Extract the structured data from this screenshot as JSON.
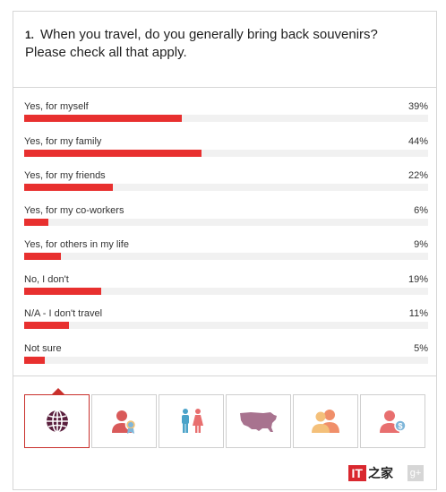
{
  "question": {
    "number": "1.",
    "text": "When you travel, do you generally bring back souvenirs? Please check all that apply."
  },
  "results": [
    {
      "label": "Yes, for myself",
      "pct_text": "39%",
      "value": 39
    },
    {
      "label": "Yes, for my family",
      "pct_text": "44%",
      "value": 44
    },
    {
      "label": "Yes, for my friends",
      "pct_text": "22%",
      "value": 22
    },
    {
      "label": "Yes, for my co-workers",
      "pct_text": "6%",
      "value": 6
    },
    {
      "label": "Yes, for others in my life",
      "pct_text": "9%",
      "value": 9
    },
    {
      "label": "No, I don't",
      "pct_text": "19%",
      "value": 19
    },
    {
      "label": "N/A - I don't travel",
      "pct_text": "11%",
      "value": 11
    },
    {
      "label": "Not sure",
      "pct_text": "5%",
      "value": 5
    }
  ],
  "bar_scale_max": 100,
  "colors": {
    "bar": "#e8302f",
    "track": "#f1f1f1",
    "active_border": "#c9302c"
  },
  "filter_tabs": [
    {
      "icon": "globe-icon",
      "active": true
    },
    {
      "icon": "person-award-icon",
      "active": false
    },
    {
      "icon": "male-female-icon",
      "active": false
    },
    {
      "icon": "usa-map-icon",
      "active": false
    },
    {
      "icon": "people-icon",
      "active": false
    },
    {
      "icon": "person-dollar-icon",
      "active": false
    }
  ],
  "watermark": {
    "brand": "IT",
    "suffix": "之家",
    "social": "g+"
  }
}
